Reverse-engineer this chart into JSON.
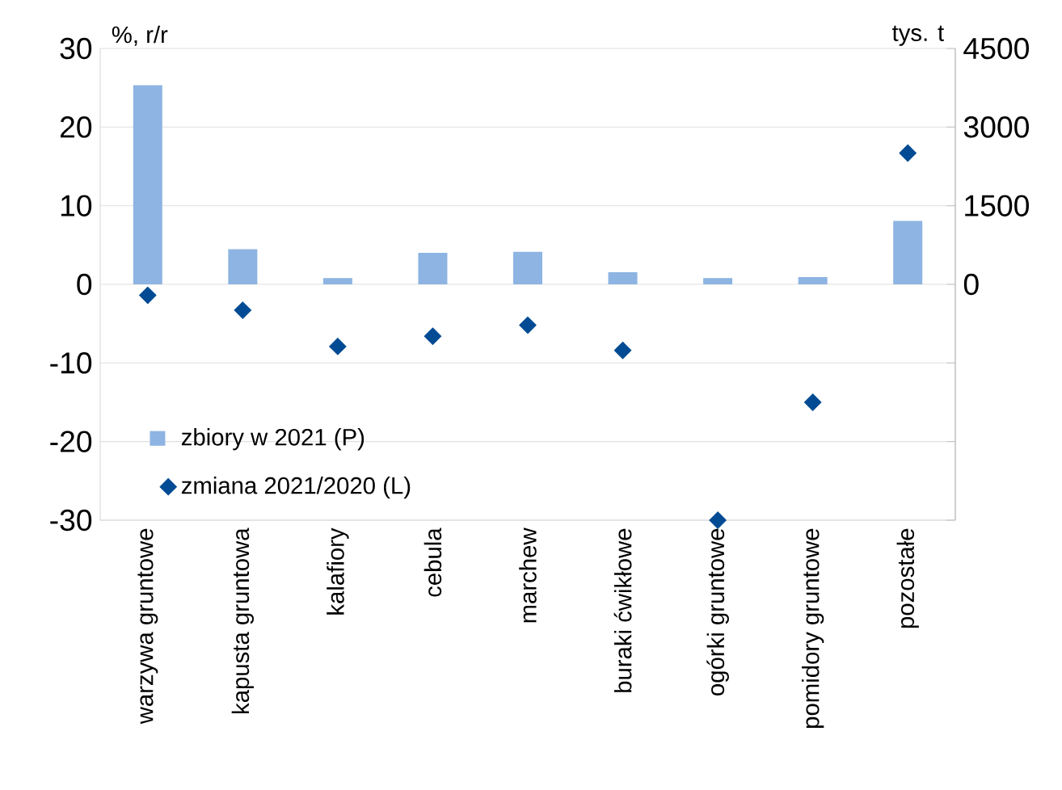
{
  "chart_data": {
    "type": "bar",
    "ylabel": "%, r/r",
    "y2label": "tys. t",
    "categories": [
      "warzywa gruntowe",
      "kapusta gruntowa",
      "kalafiory",
      "cebula",
      "marchew",
      "buraki ćwikłowe",
      "ogórki gruntowe",
      "pomidory gruntowe",
      "pozostałe"
    ],
    "series": [
      {
        "name": "zbiory w 2021 (P)",
        "axis": "y2",
        "color": "#8db4e2",
        "values": [
          3800,
          670,
          120,
          600,
          620,
          230,
          120,
          140,
          1210
        ]
      },
      {
        "name": "zmiana 2021/2020 (L)",
        "type": "scatter",
        "axis": "y",
        "color": "#004b93",
        "marker": "diamond",
        "values": [
          -1.4,
          -3.3,
          -7.9,
          -6.6,
          -5.2,
          -8.4,
          -30,
          -15,
          16.7
        ]
      }
    ],
    "ylim": [
      -30,
      30
    ],
    "yticks": [
      -30,
      -20,
      -10,
      0,
      10,
      20,
      30
    ],
    "y2lim": [
      -4500,
      4500
    ],
    "y2ticks": [
      {
        "value": -4500,
        "label": null
      },
      {
        "value": -3000,
        "label": null
      },
      {
        "value": -1500,
        "label": null
      },
      0,
      1500,
      3000,
      4500
    ],
    "grid": "y",
    "legend": "bottom left"
  }
}
